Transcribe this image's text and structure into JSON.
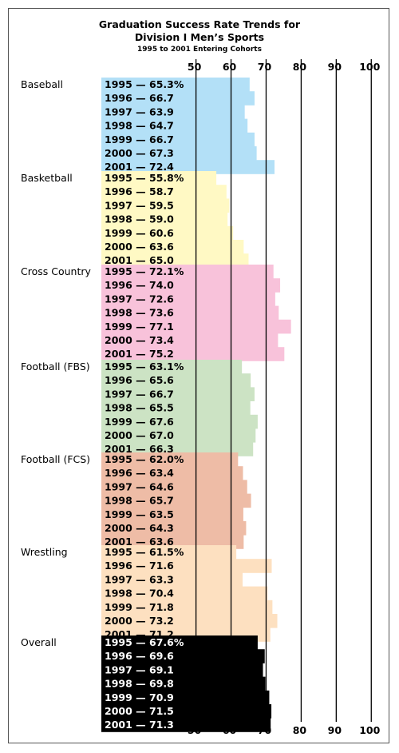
{
  "chart_data": {
    "type": "bar",
    "title": "Graduation Success Rate Trends for",
    "title_line2": "Division I Men’s Sports",
    "subtitle": "1995 to 2001 Entering Cohorts",
    "x_ticks": [
      "50",
      "60",
      "70",
      "80",
      "90",
      "100"
    ],
    "x_tick_values": [
      50,
      60,
      70,
      80,
      90,
      100
    ],
    "xlim": [
      23,
      100
    ],
    "orientation": "horizontal",
    "grid": true,
    "groups": [
      {
        "name": "Baseball",
        "color": "#b3e0f7",
        "years": [
          "1995",
          "1996",
          "1997",
          "1998",
          "1999",
          "2000",
          "2001"
        ],
        "values": [
          65.3,
          66.7,
          63.9,
          64.7,
          66.7,
          67.3,
          72.4
        ],
        "labels": [
          "1995 — 65.3%",
          "1996 — 66.7",
          "1997 — 63.9",
          "1998 — 64.7",
          "1999 — 66.7",
          "2000 — 67.3",
          "2001 — 72.4"
        ]
      },
      {
        "name": "Basketball",
        "color": "#fff9c4",
        "years": [
          "1995",
          "1996",
          "1997",
          "1998",
          "1999",
          "2000",
          "2001"
        ],
        "values": [
          55.8,
          58.7,
          59.5,
          59.0,
          60.6,
          63.6,
          65.0
        ],
        "labels": [
          "1995 — 55.8%",
          "1996 — 58.7",
          "1997 — 59.5",
          "1998 — 59.0",
          "1999 — 60.6",
          "2000 — 63.6",
          "2001 — 65.0"
        ]
      },
      {
        "name": "Cross Country",
        "color": "#f8c2da",
        "years": [
          "1995",
          "1996",
          "1997",
          "1998",
          "1999",
          "2000",
          "2001"
        ],
        "values": [
          72.1,
          74.0,
          72.6,
          73.6,
          77.1,
          73.4,
          75.2
        ],
        "labels": [
          "1995 — 72.1%",
          "1996 — 74.0",
          "1997 — 72.6",
          "1998 — 73.6",
          "1999 — 77.1",
          "2000 — 73.4",
          "2001 — 75.2"
        ]
      },
      {
        "name": "Football (FBS)",
        "color": "#cce3c4",
        "years": [
          "1995",
          "1996",
          "1997",
          "1998",
          "1999",
          "2000",
          "2001"
        ],
        "values": [
          63.1,
          65.6,
          66.7,
          65.5,
          67.6,
          67.0,
          66.3
        ],
        "labels": [
          "1995 — 63.1%",
          "1996 — 65.6",
          "1997 — 66.7",
          "1998 — 65.5",
          "1999 — 67.6",
          "2000 — 67.0",
          "2001 — 66.3"
        ]
      },
      {
        "name": "Football (FCS)",
        "color": "#eebca6",
        "years": [
          "1995",
          "1996",
          "1997",
          "1998",
          "1999",
          "2000",
          "2001"
        ],
        "values": [
          62.0,
          63.4,
          64.6,
          65.7,
          63.5,
          64.3,
          63.6
        ],
        "labels": [
          "1995 — 62.0%",
          "1996 — 63.4",
          "1997 — 64.6",
          "1998 — 65.7",
          "1999 — 63.5",
          "2000 — 64.3",
          "2001 — 63.6"
        ]
      },
      {
        "name": "Wrestling",
        "color": "#fde0c0",
        "years": [
          "1995",
          "1996",
          "1997",
          "1998",
          "1999",
          "2000",
          "2001"
        ],
        "values": [
          61.5,
          71.6,
          63.3,
          70.4,
          71.8,
          73.2,
          71.2
        ],
        "labels": [
          "1995 — 61.5%",
          "1996 — 71.6",
          "1997 — 63.3",
          "1998 — 70.4",
          "1999 — 71.8",
          "2000 — 73.2",
          "2001 — 71.2"
        ]
      },
      {
        "name": "Overall",
        "color": "#000000",
        "label_color": "#ffffff",
        "years": [
          "1995",
          "1996",
          "1997",
          "1998",
          "1999",
          "2000",
          "2001"
        ],
        "values": [
          67.6,
          69.6,
          69.1,
          69.8,
          70.9,
          71.5,
          71.3
        ],
        "labels": [
          "1995 — 67.6%",
          "1996 — 69.6",
          "1997 — 69.1",
          "1998 — 69.8",
          "1999 — 70.9",
          "2000 — 71.5",
          "2001 — 71.3"
        ]
      }
    ]
  }
}
